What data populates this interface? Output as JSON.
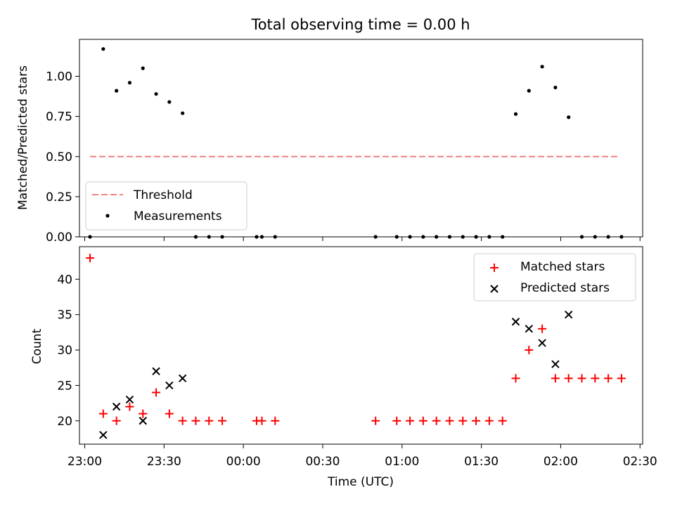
{
  "chart_data": [
    {
      "type": "scatter",
      "title": "Total observing time = 0.00 h",
      "ylabel": "Matched/Predicted stars",
      "xlim": [
        "22:58",
        "02:31"
      ],
      "ylim": [
        0,
        1.23
      ],
      "yticks": [
        "0.00",
        "0.25",
        "0.50",
        "0.75",
        "1.00"
      ],
      "legend_position": "bottom-left",
      "threshold": {
        "name": "Threshold",
        "value": 0.5,
        "x_start": "23:02",
        "x_end": "02:22",
        "color": "#f08080",
        "style": "dashed"
      },
      "series": [
        {
          "name": "Measurements",
          "color": "#000000",
          "points": [
            {
              "x": "23:02",
              "y": 0.0
            },
            {
              "x": "23:07",
              "y": 1.17
            },
            {
              "x": "23:12",
              "y": 0.91
            },
            {
              "x": "23:17",
              "y": 0.96
            },
            {
              "x": "23:22",
              "y": 1.05
            },
            {
              "x": "23:27",
              "y": 0.89
            },
            {
              "x": "23:32",
              "y": 0.84
            },
            {
              "x": "23:37",
              "y": 0.77
            },
            {
              "x": "23:42",
              "y": 0.0
            },
            {
              "x": "23:47",
              "y": 0.0
            },
            {
              "x": "23:52",
              "y": 0.0
            },
            {
              "x": "00:05",
              "y": 0.0
            },
            {
              "x": "00:07",
              "y": 0.0
            },
            {
              "x": "00:12",
              "y": 0.0
            },
            {
              "x": "00:50",
              "y": 0.0
            },
            {
              "x": "00:58",
              "y": 0.0
            },
            {
              "x": "01:03",
              "y": 0.0
            },
            {
              "x": "01:08",
              "y": 0.0
            },
            {
              "x": "01:13",
              "y": 0.0
            },
            {
              "x": "01:18",
              "y": 0.0
            },
            {
              "x": "01:23",
              "y": 0.0
            },
            {
              "x": "01:28",
              "y": 0.0
            },
            {
              "x": "01:33",
              "y": 0.0
            },
            {
              "x": "01:38",
              "y": 0.0
            },
            {
              "x": "01:43",
              "y": 0.765
            },
            {
              "x": "01:48",
              "y": 0.91
            },
            {
              "x": "01:53",
              "y": 1.06
            },
            {
              "x": "01:58",
              "y": 0.93
            },
            {
              "x": "02:03",
              "y": 0.745
            },
            {
              "x": "02:08",
              "y": 0.0
            },
            {
              "x": "02:13",
              "y": 0.0
            },
            {
              "x": "02:18",
              "y": 0.0
            },
            {
              "x": "02:23",
              "y": 0.0
            }
          ]
        }
      ]
    },
    {
      "type": "scatter",
      "xlabel": "Time (UTC)",
      "ylabel": "Count",
      "xlim": [
        "22:58",
        "02:31"
      ],
      "ylim": [
        16.7,
        44.6
      ],
      "xticks": [
        "23:00",
        "23:30",
        "00:00",
        "00:30",
        "01:00",
        "01:30",
        "02:00",
        "02:30"
      ],
      "yticks": [
        "20",
        "25",
        "30",
        "35",
        "40"
      ],
      "legend_position": "top-right",
      "series": [
        {
          "name": "Matched stars",
          "color": "#ff0000",
          "marker": "plus",
          "points": [
            {
              "x": "23:02",
              "y": 43
            },
            {
              "x": "23:07",
              "y": 21
            },
            {
              "x": "23:12",
              "y": 20
            },
            {
              "x": "23:17",
              "y": 22
            },
            {
              "x": "23:22",
              "y": 21
            },
            {
              "x": "23:27",
              "y": 24
            },
            {
              "x": "23:32",
              "y": 21
            },
            {
              "x": "23:37",
              "y": 20
            },
            {
              "x": "23:42",
              "y": 20
            },
            {
              "x": "23:47",
              "y": 20
            },
            {
              "x": "23:52",
              "y": 20
            },
            {
              "x": "00:05",
              "y": 20
            },
            {
              "x": "00:07",
              "y": 20
            },
            {
              "x": "00:12",
              "y": 20
            },
            {
              "x": "00:50",
              "y": 20
            },
            {
              "x": "00:58",
              "y": 20
            },
            {
              "x": "01:03",
              "y": 20
            },
            {
              "x": "01:08",
              "y": 20
            },
            {
              "x": "01:13",
              "y": 20
            },
            {
              "x": "01:18",
              "y": 20
            },
            {
              "x": "01:23",
              "y": 20
            },
            {
              "x": "01:28",
              "y": 20
            },
            {
              "x": "01:33",
              "y": 20
            },
            {
              "x": "01:38",
              "y": 20
            },
            {
              "x": "01:43",
              "y": 26
            },
            {
              "x": "01:48",
              "y": 30
            },
            {
              "x": "01:53",
              "y": 33
            },
            {
              "x": "01:58",
              "y": 26
            },
            {
              "x": "02:03",
              "y": 26
            },
            {
              "x": "02:08",
              "y": 26
            },
            {
              "x": "02:13",
              "y": 26
            },
            {
              "x": "02:18",
              "y": 26
            },
            {
              "x": "02:23",
              "y": 26
            }
          ]
        },
        {
          "name": "Predicted stars",
          "color": "#000000",
          "marker": "x",
          "points": [
            {
              "x": "23:07",
              "y": 18
            },
            {
              "x": "23:12",
              "y": 22
            },
            {
              "x": "23:17",
              "y": 23
            },
            {
              "x": "23:22",
              "y": 20
            },
            {
              "x": "23:27",
              "y": 27
            },
            {
              "x": "23:32",
              "y": 25
            },
            {
              "x": "23:37",
              "y": 26
            },
            {
              "x": "01:43",
              "y": 34
            },
            {
              "x": "01:48",
              "y": 33
            },
            {
              "x": "01:53",
              "y": 31
            },
            {
              "x": "01:58",
              "y": 28
            },
            {
              "x": "02:03",
              "y": 35
            }
          ]
        }
      ]
    }
  ]
}
